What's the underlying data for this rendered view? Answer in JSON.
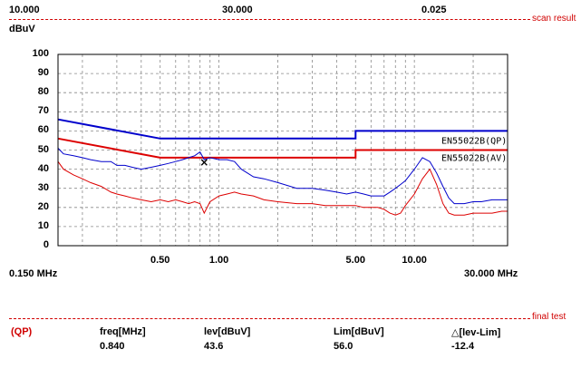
{
  "header": {
    "values": [
      "10.000",
      "30.000",
      "0.025"
    ],
    "unit": "dBuV",
    "scan_result_label": "scan result"
  },
  "chart_data": {
    "type": "line",
    "xscale": "log",
    "xlim": [
      0.15,
      30
    ],
    "ylim": [
      0,
      100
    ],
    "ylabel": "dBuV",
    "yticks": [
      0,
      10,
      20,
      30,
      40,
      50,
      60,
      70,
      80,
      90,
      100
    ],
    "xtick_labels": [
      "0.50",
      "1.00",
      "5.00",
      "10.00"
    ],
    "xtick_values": [
      0.5,
      1.0,
      5.0,
      10.0
    ],
    "x_start_label": "0.150 MHz",
    "x_end_label": "30.000 MHz",
    "grid": true,
    "limit_lines": [
      {
        "name": "EN55022B(QP)",
        "color": "#0000cc",
        "x": [
          0.15,
          0.5,
          5.0,
          5.0,
          30.0
        ],
        "y": [
          66,
          56,
          56,
          60,
          60
        ]
      },
      {
        "name": "EN55022B(AV)",
        "color": "#dd0000",
        "x": [
          0.15,
          0.5,
          5.0,
          5.0,
          30.0
        ],
        "y": [
          56,
          46,
          46,
          50,
          50
        ]
      }
    ],
    "series": [
      {
        "color": "#0000cc",
        "x": [
          0.15,
          0.16,
          0.18,
          0.2,
          0.22,
          0.25,
          0.28,
          0.3,
          0.33,
          0.36,
          0.4,
          0.45,
          0.5,
          0.55,
          0.6,
          0.65,
          0.7,
          0.75,
          0.8,
          0.84,
          0.9,
          1.0,
          1.1,
          1.2,
          1.3,
          1.5,
          1.7,
          2.0,
          2.5,
          3.0,
          3.5,
          4.0,
          4.5,
          5.0,
          5.5,
          6.0,
          6.5,
          7.0,
          7.5,
          8.0,
          8.5,
          9.0,
          10.0,
          11.0,
          12.0,
          13.0,
          14.0,
          15.0,
          16.0,
          18.0,
          20.0,
          22.0,
          25.0,
          28.0,
          30.0
        ],
        "y": [
          51,
          48,
          47,
          46,
          45,
          44,
          44,
          42,
          42,
          41,
          40,
          41,
          42,
          43,
          44,
          45,
          46,
          47,
          49,
          45,
          46,
          45,
          45,
          44,
          40,
          36,
          35,
          33,
          30,
          30,
          29,
          28,
          27,
          28,
          27,
          26,
          26,
          26,
          28,
          30,
          32,
          34,
          40,
          46,
          44,
          38,
          31,
          25,
          22,
          22,
          23,
          23,
          24,
          24,
          24
        ]
      },
      {
        "color": "#dd0000",
        "x": [
          0.15,
          0.16,
          0.18,
          0.2,
          0.22,
          0.25,
          0.28,
          0.3,
          0.33,
          0.36,
          0.4,
          0.45,
          0.5,
          0.55,
          0.6,
          0.65,
          0.7,
          0.75,
          0.8,
          0.84,
          0.9,
          1.0,
          1.1,
          1.2,
          1.3,
          1.5,
          1.7,
          2.0,
          2.5,
          3.0,
          3.5,
          4.0,
          4.5,
          5.0,
          5.5,
          6.0,
          6.5,
          7.0,
          7.5,
          8.0,
          8.5,
          9.0,
          10.0,
          11.0,
          12.0,
          13.0,
          14.0,
          15.0,
          16.0,
          18.0,
          20.0,
          22.0,
          25.0,
          28.0,
          30.0
        ],
        "y": [
          44,
          40,
          37,
          35,
          33,
          31,
          28,
          27,
          26,
          25,
          24,
          23,
          24,
          23,
          24,
          23,
          22,
          23,
          22,
          17,
          23,
          26,
          27,
          28,
          27,
          26,
          24,
          23,
          22,
          22,
          21,
          21,
          21,
          21,
          20,
          20,
          20,
          19,
          17,
          16,
          17,
          21,
          27,
          35,
          40,
          32,
          22,
          17,
          16,
          16,
          17,
          17,
          17,
          18,
          18
        ]
      }
    ],
    "marker": {
      "x": 0.84,
      "y": 43.6,
      "symbol": "×"
    },
    "annotations": [
      "EN55022B(QP)",
      "EN55022B(AV)"
    ]
  },
  "final_test": {
    "label": "final test",
    "mode": "(QP)",
    "headers": [
      "freq[MHz]",
      "lev[dBuV]",
      "Lim[dBuV]",
      "△[lev-Lim]"
    ],
    "values": [
      "0.840",
      "43.6",
      "56.0",
      "-12.4"
    ]
  },
  "colors": {
    "blue": "#0000cc",
    "red": "#dd0000",
    "grid": "#888888"
  }
}
